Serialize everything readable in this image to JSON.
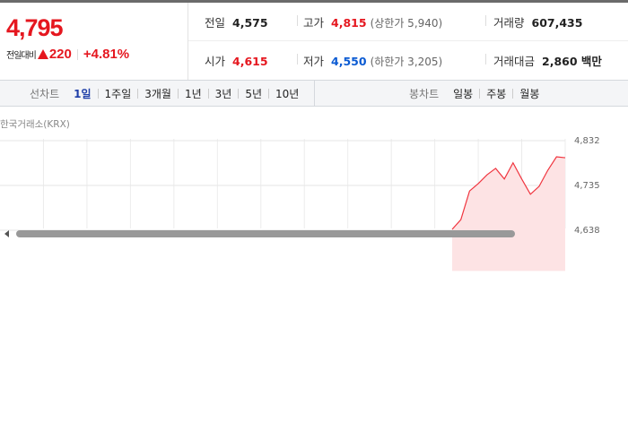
{
  "quote": {
    "price": "4,795",
    "change_label": "전일대비",
    "change": "220",
    "change_rate": "+4.81%"
  },
  "stats": [
    {
      "label": "전일",
      "value": "4,575"
    },
    {
      "label": "고가",
      "value": "4,815",
      "note": "(상한가 5,940)"
    },
    {
      "label": "거래량",
      "value": "607,435"
    },
    {
      "label": "시가",
      "value": "4,615"
    },
    {
      "label": "저가",
      "value": "4,550",
      "note": "(하한가 3,205)"
    },
    {
      "label": "거래대금",
      "value": "2,860 백만"
    }
  ],
  "tabs": {
    "line_label": "선차트",
    "line": [
      "1일",
      "1주일",
      "3개월",
      "1년",
      "3년",
      "5년",
      "10년"
    ],
    "candle_label": "봉차트",
    "candle": [
      "일봉",
      "주봉",
      "월봉"
    ]
  },
  "source": "한국거래소(KRX)",
  "chart_data": {
    "type": "line",
    "color": "#f0353f",
    "fill": "#fde3e4",
    "grid": true,
    "values": [
      null,
      null,
      null,
      null,
      null,
      null,
      null,
      null,
      null,
      null,
      null,
      null,
      null,
      null,
      null,
      null,
      null,
      null,
      null,
      null,
      null,
      null,
      null,
      null,
      null,
      null,
      null,
      null,
      null,
      null,
      null,
      null,
      null,
      null,
      null,
      null,
      null,
      null,
      null,
      null,
      null,
      null,
      null,
      null,
      null,
      null,
      null,
      null,
      null,
      null,
      null,
      null,
      4640,
      4661,
      4723,
      4739,
      4758,
      4772,
      4749,
      4784,
      4749,
      4716,
      4733,
      4768,
      4797,
      4795
    ],
    "ylim": [
      4550,
      4832
    ],
    "yticks": [
      {
        "value": 4832,
        "label": "4,832"
      },
      {
        "value": 4735,
        "label": "4,735"
      },
      {
        "value": 4638,
        "label": "4,638"
      }
    ]
  }
}
